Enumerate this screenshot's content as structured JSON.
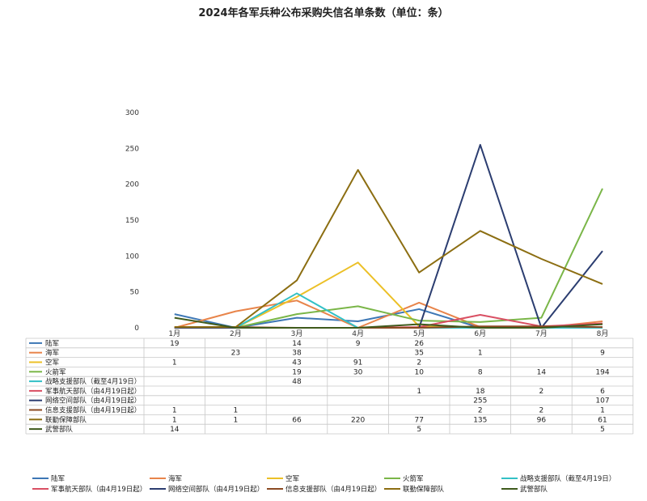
{
  "chart_data": {
    "type": "line",
    "title": "2024年各军兵种公布采购失信名单条数（单位：条）",
    "categories": [
      "1月",
      "2月",
      "3月",
      "4月",
      "5月",
      "6月",
      "7月",
      "8月"
    ],
    "ylim": [
      0,
      300
    ],
    "yticks": [
      0,
      50,
      100,
      150,
      200,
      250,
      300
    ],
    "grid": false,
    "legend_position": "bottom",
    "series": [
      {
        "name": "陆军",
        "color": "#3d77b5",
        "values": [
          19,
          null,
          14,
          9,
          26,
          null,
          null,
          null
        ]
      },
      {
        "name": "海军",
        "color": "#e8844a",
        "values": [
          null,
          23,
          38,
          null,
          35,
          1,
          null,
          9
        ]
      },
      {
        "name": "空军",
        "color": "#ecc027",
        "values": [
          1,
          null,
          43,
          91,
          2,
          null,
          null,
          null
        ]
      },
      {
        "name": "火箭军",
        "color": "#7ab648",
        "values": [
          null,
          null,
          19,
          30,
          10,
          8,
          14,
          194
        ]
      },
      {
        "name": "战略支援部队（截至4月19日）",
        "color": "#33c0c6",
        "values": [
          null,
          null,
          48,
          null,
          null,
          null,
          null,
          null
        ]
      },
      {
        "name": "军事航天部队（由4月19日起）",
        "color": "#d94f63",
        "values": [
          null,
          null,
          null,
          null,
          1,
          18,
          2,
          6
        ]
      },
      {
        "name": "网络空间部队（由4月19日起）",
        "color": "#2b3d70",
        "values": [
          null,
          null,
          null,
          null,
          null,
          255,
          null,
          107
        ]
      },
      {
        "name": "信息支援部队（由4月19日起）",
        "color": "#8b4a22",
        "values": [
          1,
          1,
          null,
          null,
          null,
          2,
          2,
          1
        ]
      },
      {
        "name": "联勤保障部队",
        "color": "#8c6e12",
        "values": [
          1,
          1,
          66,
          220,
          77,
          135,
          96,
          61
        ]
      },
      {
        "name": "武警部队",
        "color": "#3f5a1c",
        "values": [
          14,
          null,
          null,
          null,
          5,
          null,
          null,
          5
        ]
      }
    ]
  }
}
